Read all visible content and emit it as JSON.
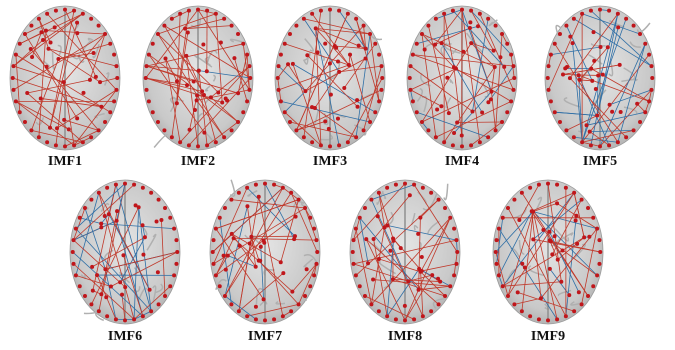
{
  "panels": [
    {
      "label": "IMF1"
    },
    {
      "label": "IMF2"
    },
    {
      "label": "IMF3"
    },
    {
      "label": "IMF4"
    },
    {
      "label": "IMF5"
    },
    {
      "label": "IMF6"
    },
    {
      "label": "IMF7"
    },
    {
      "label": "IMF8"
    },
    {
      "label": "IMF9"
    }
  ]
}
